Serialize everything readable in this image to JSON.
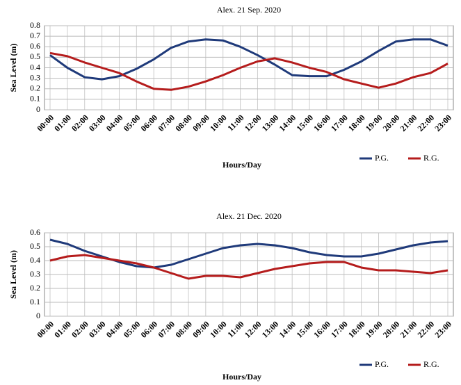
{
  "chart_data": [
    {
      "type": "line",
      "title": "Alex. 21 Sep. 2020",
      "x_label": "Hours/Day",
      "y_label": "Sea Level (m)",
      "categories": [
        "00:00",
        "01:00",
        "02:00",
        "03:00",
        "04:00",
        "05:00",
        "06:00",
        "07:00",
        "08:00",
        "09:00",
        "10:00",
        "11:00",
        "12:00",
        "13:00",
        "14:00",
        "15:00",
        "16:00",
        "17:00",
        "18:00",
        "19:00",
        "20:00",
        "21:00",
        "22:00",
        "23:00"
      ],
      "series": [
        {
          "name": "P.G.",
          "color": "#1f3a7a",
          "values": [
            0.52,
            0.4,
            0.31,
            0.29,
            0.32,
            0.39,
            0.48,
            0.59,
            0.65,
            0.67,
            0.66,
            0.6,
            0.52,
            0.43,
            0.33,
            0.32,
            0.32,
            0.38,
            0.46,
            0.56,
            0.65,
            0.67,
            0.67,
            0.61
          ]
        },
        {
          "name": "R.G.",
          "color": "#b51c1c",
          "values": [
            0.54,
            0.51,
            0.45,
            0.4,
            0.35,
            0.27,
            0.2,
            0.19,
            0.22,
            0.27,
            0.33,
            0.4,
            0.46,
            0.49,
            0.45,
            0.4,
            0.36,
            0.29,
            0.25,
            0.21,
            0.25,
            0.31,
            0.35,
            0.44
          ]
        }
      ],
      "ylim": [
        0,
        0.8
      ],
      "yticks": [
        0,
        0.1,
        0.2,
        0.3,
        0.4,
        0.5,
        0.6,
        0.7,
        0.8
      ],
      "grid": true,
      "legend": "bottom-right"
    },
    {
      "type": "line",
      "title": "Alex. 21 Dec. 2020",
      "x_label": "Hours/Day",
      "y_label": "Sea Level (m)",
      "categories": [
        "00:00",
        "01:00",
        "02:00",
        "03:00",
        "04:00",
        "05:00",
        "06:00",
        "07:00",
        "08:00",
        "09:00",
        "10:00",
        "11:00",
        "12:00",
        "13:00",
        "14:00",
        "15:00",
        "16:00",
        "17:00",
        "18:00",
        "19:00",
        "20:00",
        "21:00",
        "22:00",
        "23:00"
      ],
      "series": [
        {
          "name": "P.G.",
          "color": "#1f3a7a",
          "values": [
            0.55,
            0.52,
            0.47,
            0.43,
            0.39,
            0.36,
            0.35,
            0.37,
            0.41,
            0.45,
            0.49,
            0.51,
            0.52,
            0.51,
            0.49,
            0.46,
            0.44,
            0.43,
            0.43,
            0.45,
            0.48,
            0.51,
            0.53,
            0.54
          ]
        },
        {
          "name": "R.G.",
          "color": "#b51c1c",
          "values": [
            0.4,
            0.43,
            0.44,
            0.42,
            0.4,
            0.38,
            0.35,
            0.31,
            0.27,
            0.29,
            0.29,
            0.28,
            0.31,
            0.34,
            0.36,
            0.38,
            0.39,
            0.39,
            0.35,
            0.33,
            0.33,
            0.32,
            0.31,
            0.33
          ]
        }
      ],
      "ylim": [
        0,
        0.6
      ],
      "yticks": [
        0,
        0.1,
        0.2,
        0.3,
        0.4,
        0.5,
        0.6
      ],
      "grid": true,
      "legend": "bottom-right"
    }
  ]
}
